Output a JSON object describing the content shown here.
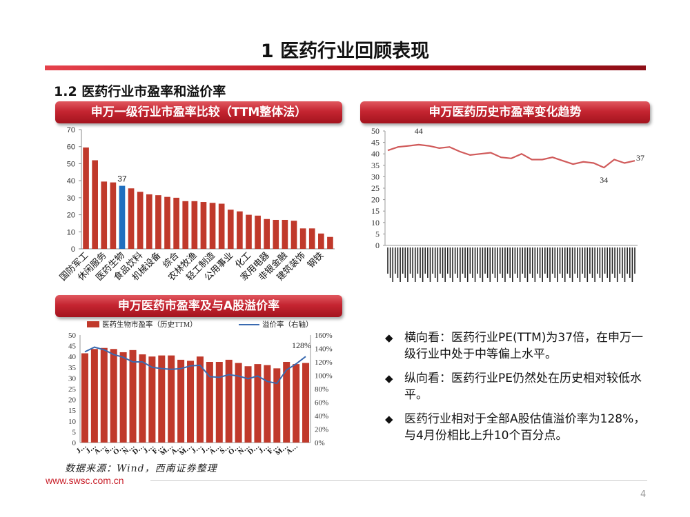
{
  "page": {
    "title": "1 医药行业回顾表现",
    "section": "1.2 医药行业市盈率和溢价率",
    "page_number": "4",
    "website": "www.swsc.com.cn",
    "source": "数据来源：Wind，西南证券整理"
  },
  "banners": {
    "industry_pe": "申万一级行业市盈率比较（TTM整体法）",
    "history_pe": "申万医药历史市盈率变化趋势",
    "premium": "申万医药市盈率及与A股溢价率"
  },
  "bullets": [
    "横向看：医药行业PE(TTM)为37倍，在申万一级行业中处于中等偏上水平。",
    "纵向看：医药行业PE仍然处在历史相对较低水平。",
    "医药行业相对于全部A股估值溢价率为128%，与4月份相比上升10个百分点。"
  ],
  "colors": {
    "accent": "#c8232c",
    "bar": "#c0392b",
    "highlight": "#1f6fbf",
    "line": "#3a6ab0",
    "history_line": "#d05a5a"
  },
  "chart_data": [
    {
      "id": "industry-pe",
      "type": "bar",
      "title": "申万一级行业市盈率比较（TTM整体法）",
      "categories": [
        "国防军工",
        "",
        "休闲服务",
        "",
        "医药生物",
        "",
        "食品饮料",
        "",
        "机械设备",
        "",
        "综合",
        "",
        "农林牧渔",
        "",
        "轻工制造",
        "",
        "公用事业",
        "",
        "化工",
        "",
        "家用电器",
        "",
        "非银金融",
        "",
        "建筑装饰",
        "",
        "钢铁",
        ""
      ],
      "values": [
        59.5,
        52,
        39.5,
        39,
        37,
        35.5,
        33.5,
        32,
        31.5,
        30.5,
        30,
        28,
        28,
        27.5,
        27,
        26.5,
        23,
        22,
        20,
        19.5,
        17.5,
        17,
        17,
        16.5,
        12,
        12,
        9,
        7
      ],
      "highlight_index": 4,
      "highlight_label": "37",
      "ylim": [
        0,
        70
      ],
      "yticks": [
        0,
        10,
        20,
        30,
        40,
        50,
        60,
        70
      ]
    },
    {
      "id": "history-pe",
      "type": "line",
      "title": "申万医药历史市盈率变化趋势",
      "values": [
        41.5,
        43,
        43.5,
        44,
        43.5,
        42.5,
        43,
        41,
        39.5,
        40,
        40.5,
        38.5,
        38,
        40,
        37.5,
        37.5,
        38.5,
        37,
        35.5,
        36.5,
        36,
        34,
        37.5,
        36,
        37
      ],
      "annotations": [
        {
          "index": 3,
          "label": "44"
        },
        {
          "index": 21,
          "label": "34"
        },
        {
          "index": 24,
          "label": "37"
        }
      ],
      "ylim": [
        0,
        50
      ],
      "yticks": [
        0,
        5,
        10,
        15,
        20,
        25,
        30,
        35,
        40,
        45,
        50
      ],
      "xlabels_note": "dense date labels (illegible)"
    },
    {
      "id": "premium",
      "type": "bar+line",
      "title": "申万医药市盈率及与A股溢价率",
      "series": [
        {
          "name": "医药生物市盈率（历史TTM）",
          "type": "bar",
          "axis": "left",
          "values": [
            41.5,
            43.5,
            44,
            43.5,
            42,
            43,
            41,
            40,
            40.5,
            40.5,
            38.5,
            38,
            40,
            37.5,
            37.5,
            38.5,
            37,
            35.5,
            36.5,
            36,
            34.5,
            37.5,
            36.5,
            37
          ]
        },
        {
          "name": "溢价率（右轴）",
          "type": "line",
          "axis": "right",
          "values": [
            135,
            142,
            138,
            131,
            127,
            120,
            120,
            112,
            110,
            109,
            110,
            114,
            115,
            98,
            97,
            101,
            99,
            95,
            99,
            91,
            88,
            108,
            117,
            128
          ]
        }
      ],
      "categories": [
        "J",
        "J",
        "A",
        "S",
        "O",
        "N",
        "D",
        "J",
        "F",
        "M",
        "A",
        "M",
        "J",
        "J",
        "A",
        "S",
        "O",
        "N",
        "D",
        "J",
        "F",
        "M",
        "A",
        ""
      ],
      "xtick_labels": [
        "J…",
        "J…",
        "A…",
        "S…",
        "O…",
        "N…",
        "D…",
        "J…",
        "F…",
        "M…",
        "A…",
        "M…",
        "J…",
        "J…",
        "A…",
        "S…",
        "O…",
        "N…",
        "D…",
        "J…",
        "F…",
        "M…",
        "A…"
      ],
      "left_ylim": [
        0,
        50
      ],
      "left_yticks": [
        0,
        5,
        10,
        15,
        20,
        25,
        30,
        35,
        40,
        45,
        50
      ],
      "right_ylim": [
        0,
        160
      ],
      "right_yticks": [
        "0%",
        "20%",
        "40%",
        "60%",
        "80%",
        "100%",
        "120%",
        "140%",
        "160%"
      ],
      "annotation": "128%"
    }
  ]
}
